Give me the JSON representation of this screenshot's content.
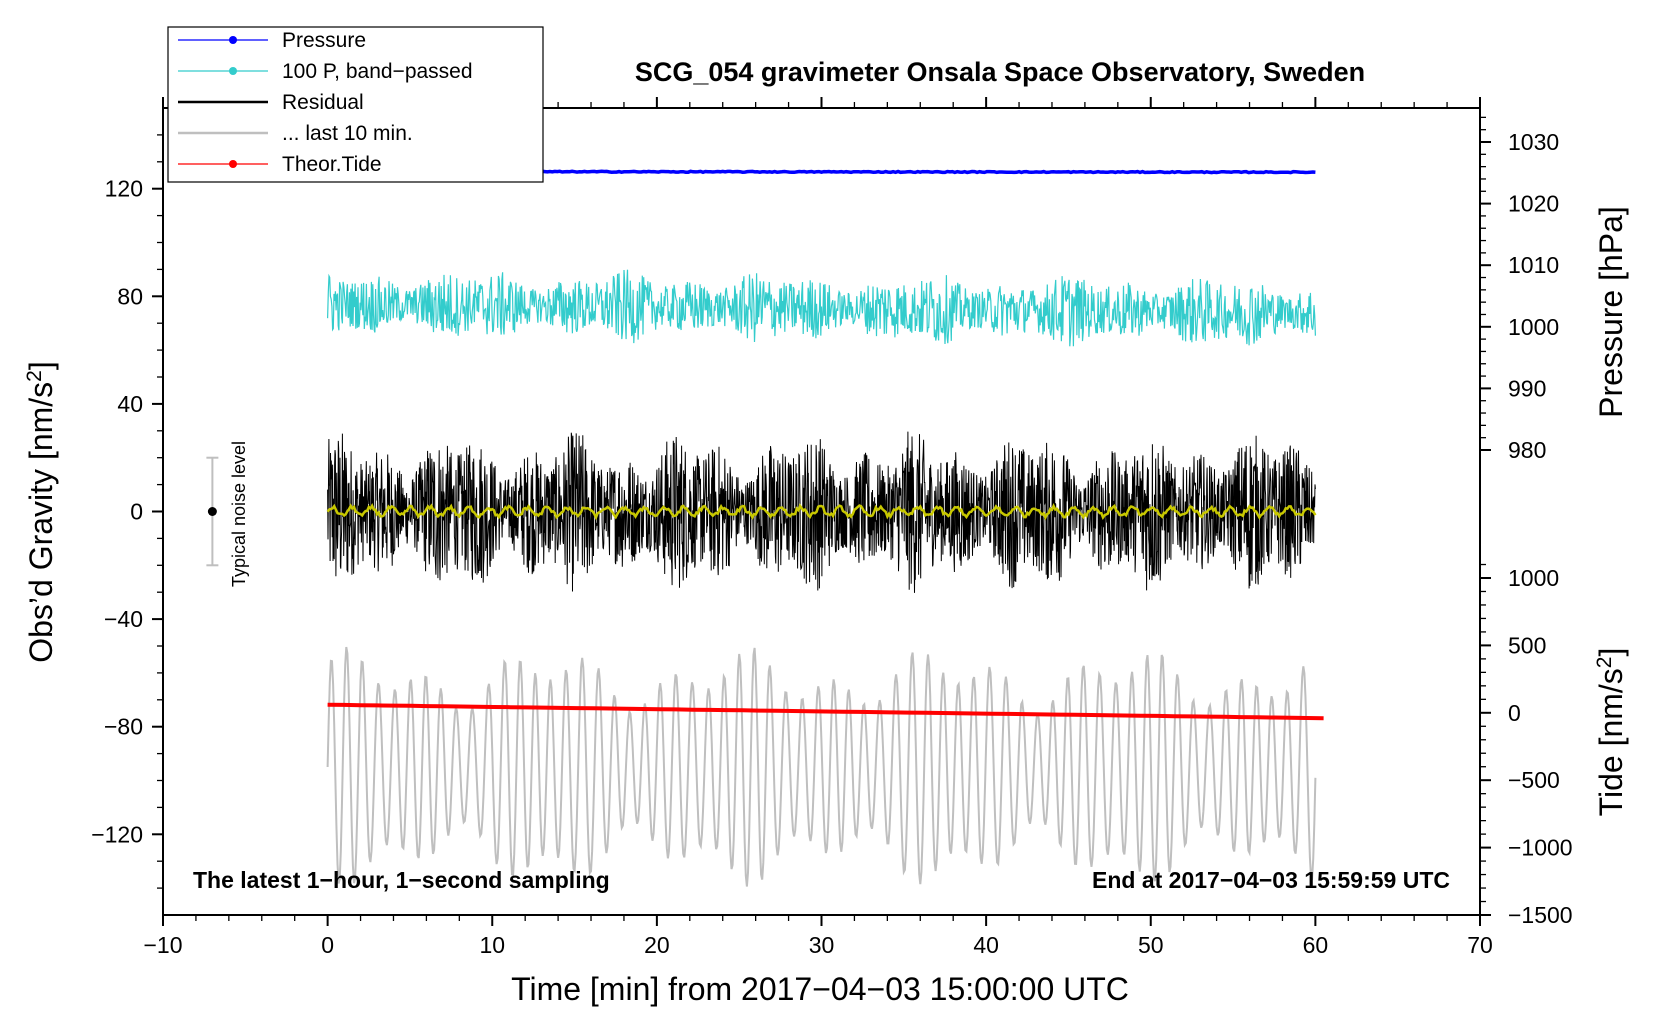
{
  "chart_data": {
    "type": "line",
    "title": "SCG_054 gravimeter Onsala Space Observatory, Sweden",
    "xlabel": "Time [min] from 2017−04−03 15:00:00 UTC",
    "ylabel_left": "Obs’d Gravity [nm/s",
    "ylabel_left_sup": "2",
    "ylabel_left_close": "]",
    "ylabel_pressure": "Pressure [hPa]",
    "ylabel_tide": "Tide [nm/s",
    "ylabel_tide_sup": "2",
    "ylabel_tide_close": "]",
    "xlim": [
      -10,
      70
    ],
    "ylim_gravity": [
      -150,
      150
    ],
    "ylim_pressure": [
      960,
      1035
    ],
    "ylim_tide": [
      -1500,
      2500
    ],
    "x_ticks": [
      "−10",
      "0",
      "10",
      "20",
      "30",
      "40",
      "50",
      "60",
      "70"
    ],
    "x_tick_values": [
      -10,
      0,
      10,
      20,
      30,
      40,
      50,
      60,
      70
    ],
    "gravity_ticks": [
      "−120",
      "−80",
      "−40",
      "0",
      "40",
      "80",
      "120"
    ],
    "gravity_tick_values": [
      -120,
      -80,
      -40,
      0,
      40,
      80,
      120
    ],
    "pressure_ticks": [
      "980",
      "990",
      "1000",
      "1010",
      "1020",
      "1030"
    ],
    "pressure_tick_values": [
      980,
      990,
      1000,
      1010,
      1020,
      1030
    ],
    "tide_ticks": [
      "−1500",
      "−1000",
      "−500",
      "0",
      "500",
      "1000"
    ],
    "tide_tick_values": [
      -1500,
      -1000,
      -500,
      0,
      500,
      1000
    ],
    "legend": [
      {
        "label": "Pressure",
        "color": "#0000ff",
        "marker": true
      },
      {
        "label": "100 P, band−passed",
        "color": "#33cccc",
        "marker": true
      },
      {
        "label": "Residual",
        "color": "#000000",
        "marker": false
      },
      {
        "label": "... last 10 min.",
        "color": "#bfbfbf",
        "marker": false
      },
      {
        "label": "Theor.Tide",
        "color": "#ff0000",
        "marker": true
      }
    ],
    "series": [
      {
        "name": "Pressure",
        "color": "#0000ff",
        "axis": "pressure",
        "x_range": [
          0,
          60
        ],
        "level_start": 1025.2,
        "level_end": 1025.1,
        "noise_amp": 0.15
      },
      {
        "name": "100 P, band−passed",
        "color": "#33cccc",
        "axis": "gravity",
        "x_range": [
          0,
          60
        ],
        "center": 77,
        "amp_min": 6,
        "amp_max": 14
      },
      {
        "name": "Residual",
        "color": "#000000",
        "axis": "gravity",
        "x_range": [
          0,
          60
        ],
        "center": 0,
        "amp_min": 20,
        "amp_max": 37
      },
      {
        "name": "Residual (smoothed)",
        "color": "#c8c800",
        "axis": "gravity",
        "x_range": [
          0,
          60
        ],
        "center": 0,
        "amp": 1.5
      },
      {
        "name": "... last 10 min.",
        "color": "#bfbfbf",
        "axis": "gravity",
        "x_range": [
          0,
          60
        ],
        "center": -95,
        "amp_min": 20,
        "amp_max": 45
      },
      {
        "name": "Theor.Tide",
        "color": "#ff0000",
        "axis": "tide",
        "x_range": [
          0,
          60.5
        ],
        "start": 60,
        "end": -40
      }
    ],
    "noise_level": {
      "label": "Typical noise level",
      "x": -7,
      "center": 0,
      "half_range": 20
    },
    "annotation_left": "The latest 1−hour, 1−second sampling",
    "annotation_right": "End at 2017−04−03 15:59:59 UTC"
  }
}
